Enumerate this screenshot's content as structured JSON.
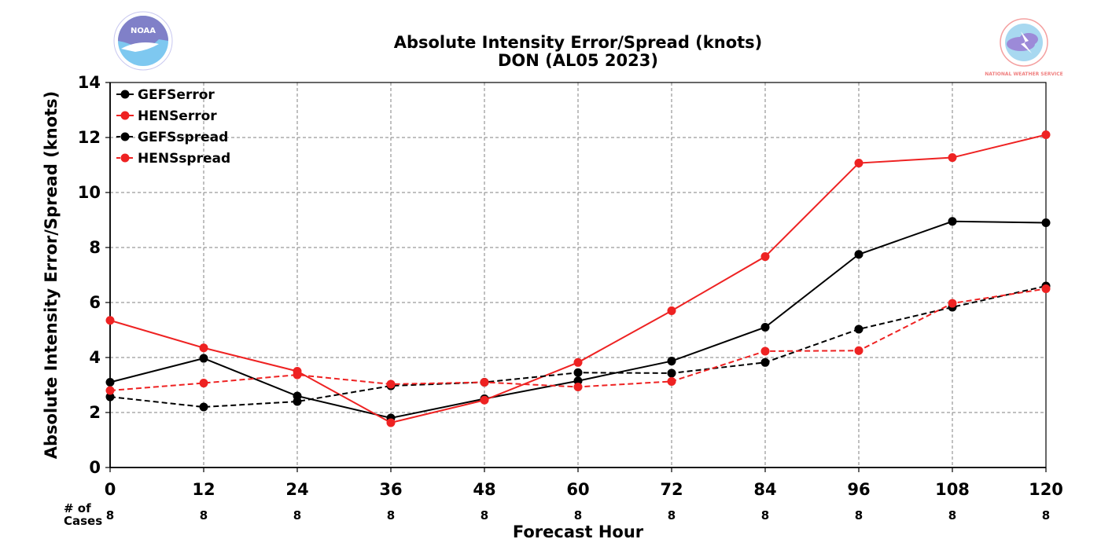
{
  "colors": {
    "gefs": "#000000",
    "hens": "#ee2222",
    "grid": "#808080"
  },
  "logos": {
    "noaa": {
      "name": "noaa-logo",
      "text": "NOAA"
    },
    "nws": {
      "name": "nws-logo",
      "text": "NATIONAL WEATHER SERVICE"
    }
  },
  "cases_label_line1": "# of",
  "cases_label_line2": "Cases",
  "chart_data": {
    "type": "line",
    "title": "Absolute Intensity Error/Spread (knots)",
    "subtitle": "DON (AL05 2023)",
    "xlabel": "Forecast Hour",
    "ylabel": "Absolute Intensity Error/Spread (knots)",
    "x": [
      0,
      12,
      24,
      36,
      48,
      60,
      72,
      84,
      96,
      108,
      120
    ],
    "xlim": [
      0,
      120
    ],
    "ylim": [
      0,
      14
    ],
    "yticks": [
      0,
      2,
      4,
      6,
      8,
      10,
      12,
      14
    ],
    "grid": true,
    "legend": "top-left",
    "cases": [
      8,
      8,
      8,
      8,
      8,
      8,
      8,
      8,
      8,
      8,
      8
    ],
    "series": [
      {
        "name": "GEFSerror",
        "color": "#000000",
        "dash": false,
        "values": [
          3.1,
          3.97,
          2.6,
          1.8,
          2.5,
          3.15,
          3.87,
          5.1,
          7.75,
          8.95,
          8.9
        ]
      },
      {
        "name": "HENSerror",
        "color": "#ee2222",
        "dash": false,
        "values": [
          5.35,
          4.35,
          3.5,
          1.63,
          2.45,
          3.82,
          5.7,
          7.67,
          11.07,
          11.27,
          12.1
        ]
      },
      {
        "name": "GEFSspread",
        "color": "#000000",
        "dash": true,
        "values": [
          2.57,
          2.2,
          2.4,
          2.97,
          3.1,
          3.45,
          3.43,
          3.82,
          5.03,
          5.83,
          6.6
        ]
      },
      {
        "name": "HENSspread",
        "color": "#ee2222",
        "dash": true,
        "values": [
          2.8,
          3.07,
          3.37,
          3.03,
          3.1,
          2.93,
          3.13,
          4.23,
          4.25,
          5.97,
          6.5
        ]
      }
    ]
  }
}
